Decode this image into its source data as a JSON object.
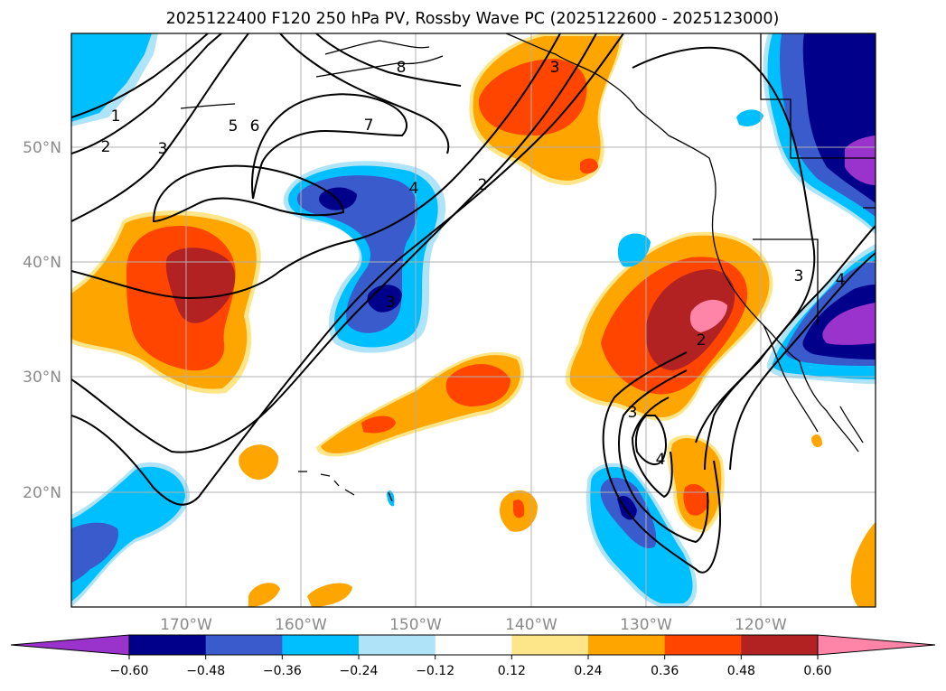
{
  "title": "2025122400 F120 250 hPa PV, Rossby Wave PC (2025122600 - 2025123000)",
  "map": {
    "lat_labels": [
      "50°N",
      "40°N",
      "30°N",
      "20°N"
    ],
    "lon_labels": [
      "170°W",
      "160°W",
      "150°W",
      "140°W",
      "130°W",
      "120°W"
    ]
  },
  "colorbar": {
    "ticks": [
      "−0.60",
      "−0.48",
      "−0.36",
      "−0.24",
      "−0.12",
      "0.12",
      "0.24",
      "0.36",
      "0.48",
      "0.60"
    ],
    "colors": [
      "#9933cc",
      "#00008b",
      "#3a5bcc",
      "#00bfff",
      "#aee3f8",
      "#ffffff",
      "#fde68a",
      "#ffa500",
      "#ff4500",
      "#b22222",
      "#ff85a8"
    ]
  },
  "contour_labels": [
    "1",
    "2",
    "3",
    "5",
    "6",
    "7",
    "8",
    "4",
    "2",
    "3",
    "3",
    "2",
    "3",
    "4",
    "3",
    "4"
  ],
  "colors": {
    "grid": "#b0b0b0",
    "contour": "#000000",
    "coast": "#000000"
  }
}
